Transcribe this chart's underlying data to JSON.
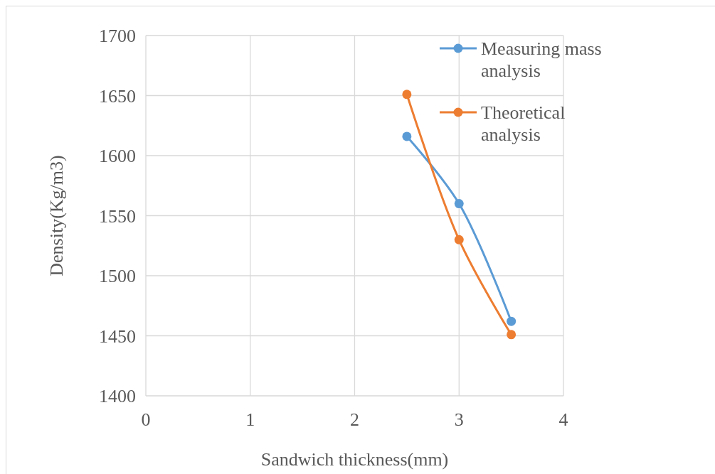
{
  "chart_data": {
    "type": "line",
    "xlabel": "Sandwich thickness(mm)",
    "ylabel": "Density(Kg/m3)",
    "x": [
      2.5,
      3,
      3.5
    ],
    "series": [
      {
        "name": "Measuring mass analysis",
        "color": "#5b9bd5",
        "values": [
          1616,
          1560,
          1462
        ]
      },
      {
        "name": "Theoretical analysis",
        "color": "#ed7d31",
        "values": [
          1651,
          1530,
          1451
        ]
      }
    ],
    "xlim": [
      0,
      4
    ],
    "xticks": [
      0,
      1,
      2,
      3,
      4
    ],
    "ylim": [
      1400,
      1700
    ],
    "yticks": [
      1400,
      1450,
      1500,
      1550,
      1600,
      1650,
      1700
    ],
    "grid": true,
    "legend": "top right",
    "marker": "circle",
    "line_style": "solid"
  }
}
